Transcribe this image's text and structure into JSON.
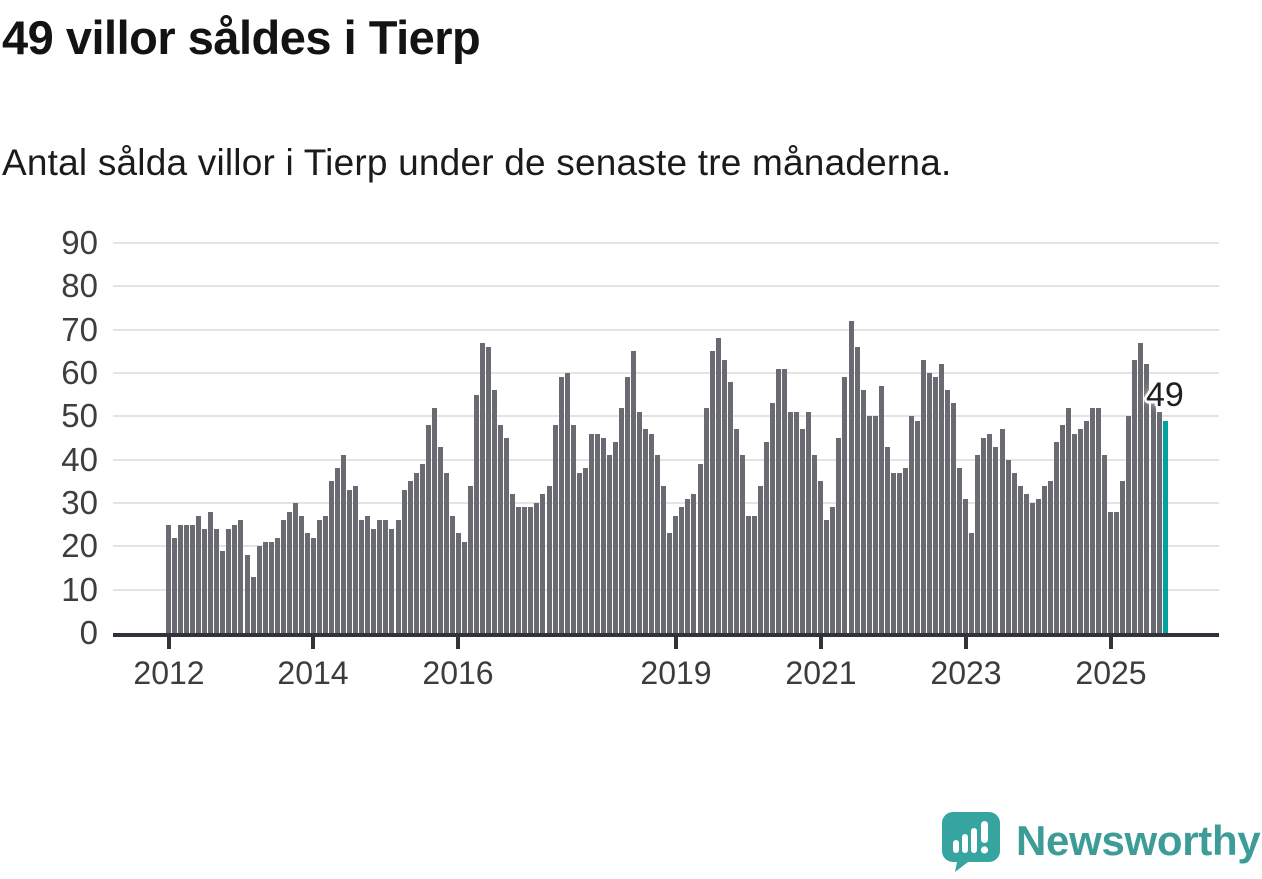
{
  "title": "49 villor såldes i Tierp",
  "subtitle": "Antal sålda villor i Tierp under de senaste tre månaderna.",
  "annotation": {
    "text": "49"
  },
  "branding": {
    "name": "Newsworthy"
  },
  "colors": {
    "bar": "#6a6a72",
    "highlight": "#00a29c",
    "gridline": "#e4e4e4",
    "axis": "#32323a",
    "logo_teal": "#36a5a0",
    "wordmark_teal": "#3e9c98"
  },
  "chart_data": {
    "type": "bar",
    "title": "49 villor såldes i Tierp",
    "subtitle": "Antal sålda villor i Tierp under de senaste tre månaderna.",
    "xlabel": "",
    "ylabel": "",
    "frequency": "monthly",
    "start_month": "2012-01",
    "end_month": "2025-10",
    "ylim": [
      0,
      90
    ],
    "grid": true,
    "y_ticks": [
      0,
      10,
      20,
      30,
      40,
      50,
      60,
      70,
      80,
      90
    ],
    "x_ticks": [
      {
        "label": "2012",
        "index": 0
      },
      {
        "label": "2014",
        "index": 24
      },
      {
        "label": "2016",
        "index": 48
      },
      {
        "label": "2019",
        "index": 84
      },
      {
        "label": "2021",
        "index": 108
      },
      {
        "label": "2023",
        "index": 132
      },
      {
        "label": "2025",
        "index": 156
      }
    ],
    "highlight_index": 165,
    "highlight_value": 49,
    "values": [
      25,
      22,
      25,
      25,
      25,
      27,
      24,
      28,
      24,
      19,
      24,
      25,
      26,
      18,
      13,
      20,
      21,
      21,
      22,
      26,
      28,
      30,
      27,
      23,
      22,
      26,
      27,
      35,
      38,
      41,
      33,
      34,
      26,
      27,
      24,
      26,
      26,
      24,
      26,
      33,
      35,
      37,
      39,
      48,
      52,
      43,
      37,
      27,
      23,
      21,
      34,
      55,
      67,
      66,
      56,
      48,
      45,
      32,
      29,
      29,
      29,
      30,
      32,
      34,
      48,
      59,
      60,
      48,
      37,
      38,
      46,
      46,
      45,
      41,
      44,
      52,
      59,
      65,
      51,
      47,
      46,
      41,
      34,
      23,
      27,
      29,
      31,
      32,
      39,
      52,
      65,
      68,
      63,
      58,
      47,
      41,
      27,
      27,
      34,
      44,
      53,
      61,
      61,
      51,
      51,
      47,
      51,
      41,
      35,
      26,
      29,
      45,
      59,
      72,
      66,
      56,
      50,
      50,
      57,
      43,
      37,
      37,
      38,
      50,
      49,
      63,
      60,
      59,
      62,
      56,
      53,
      38,
      31,
      23,
      41,
      45,
      46,
      43,
      47,
      40,
      37,
      34,
      32,
      30,
      31,
      34,
      35,
      44,
      48,
      52,
      46,
      47,
      49,
      52,
      52,
      41,
      28,
      28,
      35,
      50,
      63,
      67,
      62,
      53,
      51,
      49
    ]
  }
}
